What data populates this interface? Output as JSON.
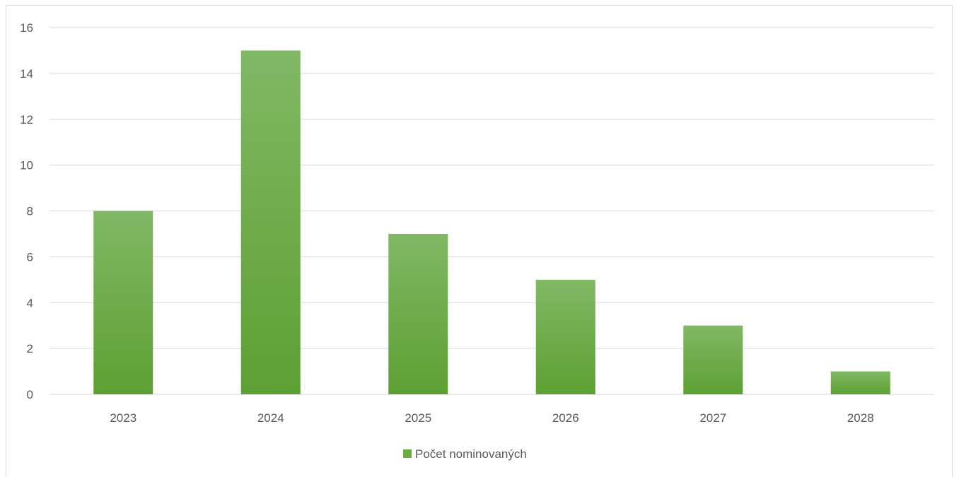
{
  "chart_data": {
    "type": "bar",
    "categories": [
      "2023",
      "2024",
      "2025",
      "2026",
      "2027",
      "2028"
    ],
    "series": [
      {
        "name": "Počet nominovaných",
        "values": [
          8,
          15,
          7,
          5,
          3,
          1
        ]
      }
    ],
    "title": "",
    "xlabel": "",
    "ylabel": "",
    "ylim": [
      0,
      16
    ],
    "yticks": [
      "0",
      "2",
      "4",
      "6",
      "8",
      "10",
      "12",
      "14",
      "16"
    ],
    "grid": true,
    "legend_position": "bottom",
    "colors": {
      "bar_top": "#80b864",
      "bar_bottom": "#5da032",
      "legend_swatch": "#6aae3e",
      "gridline": "#d9d9d9",
      "text": "#595959"
    }
  }
}
